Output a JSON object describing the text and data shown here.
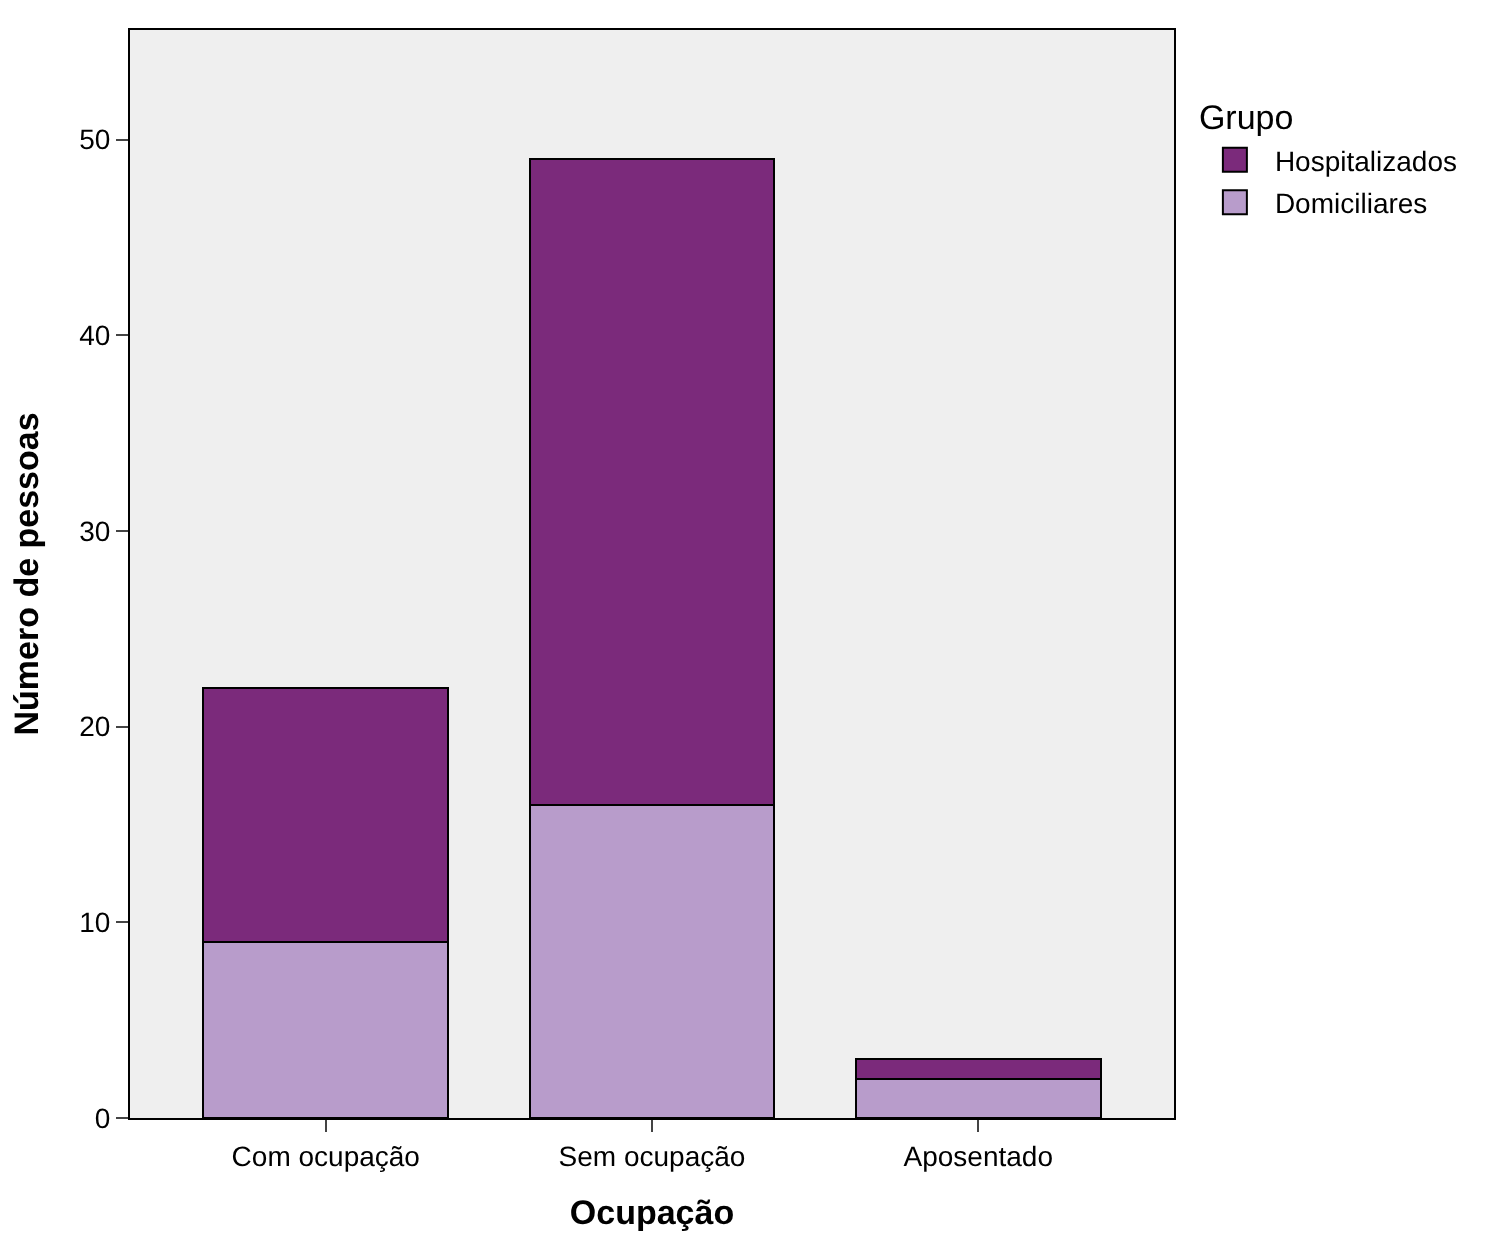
{
  "chart_data": {
    "type": "bar",
    "xlabel": "Ocupação",
    "ylabel": "Número de pessoas",
    "legend_title": "Grupo",
    "categories": [
      "Com ocupação",
      "Sem ocupação",
      "Aposentado"
    ],
    "stacked": true,
    "series": [
      {
        "name": "Domiciliares",
        "color": "#b89ccb",
        "values": [
          9,
          16,
          2
        ]
      },
      {
        "name": "Hospitalizados",
        "color": "#7b2a7b",
        "values": [
          13,
          33,
          1
        ]
      }
    ],
    "ylim": [
      0,
      55.6
    ],
    "yticks": [
      0,
      10,
      20,
      30,
      40,
      50
    ],
    "grid": false,
    "legend": "top right"
  }
}
